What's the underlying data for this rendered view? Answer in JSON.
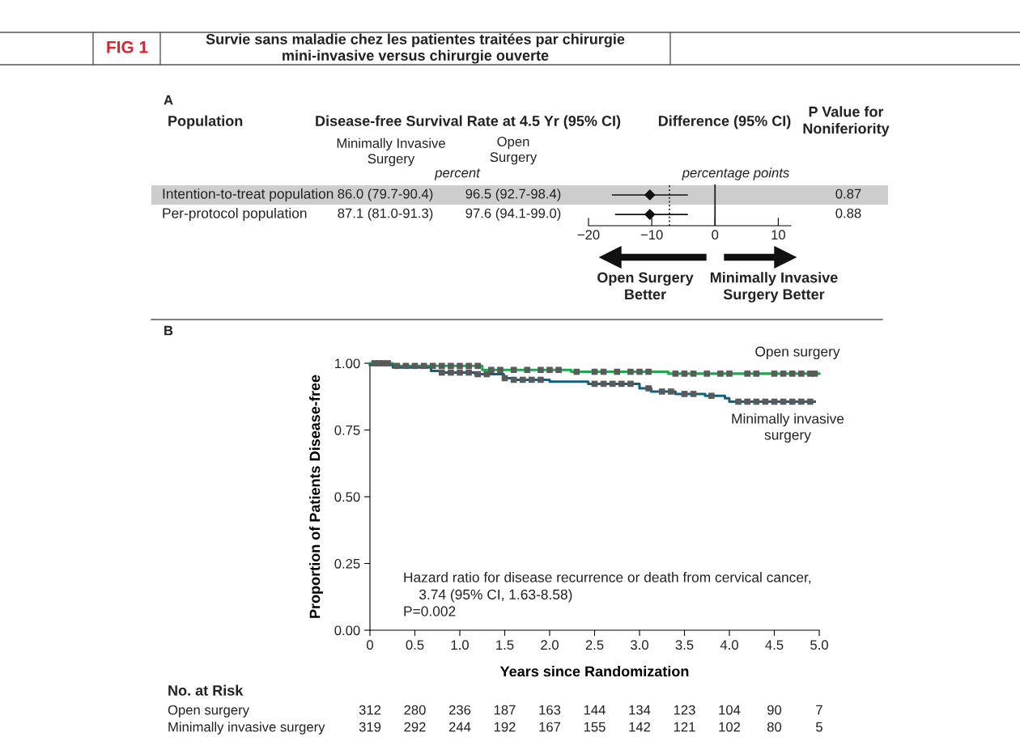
{
  "chart_data": [
    {
      "type": "scatter",
      "orientation": "horizontal",
      "title": "Survie sans maladie chez les patientes traitées par chirurgie\nmini-invasive versus chirurgie ouverte",
      "categories": [
        "Intention-to-treat population",
        "Per-protocol population"
      ],
      "values": [
        -10.3,
        -10.3
      ],
      "errors": [
        [
          -16.2,
          -4.4
        ],
        [
          -15.7,
          -4.4
        ]
      ],
      "color": "#111111",
      "marker": "diamond",
      "xlim": [
        -20,
        12
      ],
      "xticks": [
        {
          "value": -20,
          "label": "−20"
        },
        {
          "value": -10,
          "label": "−10"
        },
        0,
        10
      ],
      "tick_labels": "x",
      "grid": false,
      "ref_lines": [
        {
          "axis": "x",
          "value": 0,
          "line_style": "solid",
          "color": "#222222"
        },
        {
          "axis": "x",
          "value": -7.2,
          "line_style": "dotted",
          "color": "#222222"
        }
      ],
      "annotations": [
        "FIG 1",
        "A",
        "Population",
        "Disease-free Survival Rate at 4.5 Yr (95% CI)",
        "Minimally Invasive\nSurgery",
        "Open\nSurgery",
        "percent",
        "Difference (95% CI)",
        "percentage points",
        "P Value for\nNoniferiority",
        "86.0 (79.7-90.4)",
        "96.5 (92.7-98.4)",
        "0.87",
        "87.1 (81.0-91.3)",
        "97.6 (94.1-99.0)",
        "0.88",
        "Open Surgery\nBetter",
        "Minimally Invasive\nSurgery Better"
      ]
    },
    {
      "type": "step",
      "xlabel": "Years since Randomization",
      "ylabel": "Proportion of Patients Disease-free",
      "xlim": [
        0,
        5
      ],
      "xticks": [
        0,
        0.5,
        {
          "value": 1,
          "label": "1.0"
        },
        1.5,
        {
          "value": 2,
          "label": "2.0"
        },
        2.5,
        {
          "value": 3,
          "label": "3.0"
        },
        3.5,
        {
          "value": 4,
          "label": "4.0"
        },
        4.5,
        {
          "value": 5,
          "label": "5.0"
        }
      ],
      "ylim": [
        0,
        1
      ],
      "yticks": [
        {
          "value": 0,
          "label": "0.00"
        },
        {
          "value": 0.25,
          "label": "0.25"
        },
        {
          "value": 0.5,
          "label": "0.50"
        },
        {
          "value": 0.75,
          "label": "0.75"
        },
        {
          "value": 1,
          "label": "1.00"
        }
      ],
      "grid": false,
      "series": [
        {
          "name": "Open surgery",
          "color": "#1fa84a",
          "x": [
            0,
            0.255,
            1.25,
            2.24,
            3.32,
            5.0
          ],
          "values": [
            1.0,
            0.99,
            0.975,
            0.968,
            0.961,
            0.961
          ]
        },
        {
          "name": "Minimally invasive\nsurgery",
          "color": "#15607f",
          "x": [
            0,
            0.255,
            0.68,
            0.78,
            1.17,
            1.49,
            1.62,
            2.0,
            2.43,
            3.0,
            3.13,
            3.4,
            3.73,
            3.95,
            4.0,
            4.95
          ],
          "values": [
            0.994,
            0.984,
            0.971,
            0.965,
            0.959,
            0.944,
            0.938,
            0.931,
            0.923,
            0.906,
            0.894,
            0.885,
            0.878,
            0.869,
            0.856,
            0.856
          ]
        },
        {
          "type": "scatter",
          "marker": "square",
          "color": "#5a5a5a",
          "x": [
            0.05,
            0.1,
            0.15,
            0.2,
            0.3,
            0.4,
            0.5,
            0.6,
            0.7,
            0.8,
            0.9,
            1.0,
            1.1,
            1.2,
            1.35,
            1.45,
            1.6,
            1.75,
            1.9,
            2.0,
            2.1,
            2.3,
            2.5,
            2.6,
            2.75,
            2.9,
            3.0,
            3.1,
            3.4,
            3.5,
            3.6,
            3.75,
            3.9,
            4.0,
            4.2,
            4.3,
            4.5,
            4.6,
            4.7,
            4.8,
            4.9,
            4.95
          ],
          "values": [
            1.0,
            1.0,
            1.0,
            1.0,
            0.99,
            0.99,
            0.99,
            0.99,
            0.99,
            0.99,
            0.99,
            0.99,
            0.99,
            0.99,
            0.975,
            0.975,
            0.975,
            0.975,
            0.975,
            0.975,
            0.975,
            0.968,
            0.968,
            0.968,
            0.968,
            0.968,
            0.968,
            0.968,
            0.961,
            0.961,
            0.961,
            0.961,
            0.961,
            0.961,
            0.961,
            0.961,
            0.961,
            0.961,
            0.961,
            0.961,
            0.961,
            0.961
          ]
        },
        {
          "type": "scatter",
          "marker": "square",
          "color": "#5a5a5a",
          "x": [
            0.8,
            0.9,
            1.0,
            1.1,
            1.2,
            1.3,
            1.5,
            1.6,
            1.7,
            1.8,
            1.9,
            2.5,
            2.6,
            2.7,
            2.8,
            2.9,
            3.1,
            3.25,
            3.35,
            3.5,
            3.6,
            3.8,
            4.1,
            4.2,
            4.3,
            4.4,
            4.5,
            4.6,
            4.7,
            4.8,
            4.9
          ],
          "values": [
            0.965,
            0.965,
            0.965,
            0.965,
            0.959,
            0.959,
            0.944,
            0.938,
            0.938,
            0.938,
            0.938,
            0.923,
            0.923,
            0.923,
            0.923,
            0.923,
            0.906,
            0.894,
            0.894,
            0.885,
            0.885,
            0.878,
            0.856,
            0.856,
            0.856,
            0.856,
            0.856,
            0.856,
            0.856,
            0.856,
            0.856
          ]
        }
      ],
      "annotations": [
        "B",
        "Hazard ratio for disease recurrence or death from cervical cancer,\n    3.74 (95% CI, 1.63-8.58)",
        "P=0.002",
        "No. at Risk",
        "Open surgery",
        "Minimally invasive surgery",
        "312 280 236 187 163 144 134 123 104 90 7",
        "319 292 244 192 167 155 142 121 102 80 5"
      ]
    }
  ]
}
